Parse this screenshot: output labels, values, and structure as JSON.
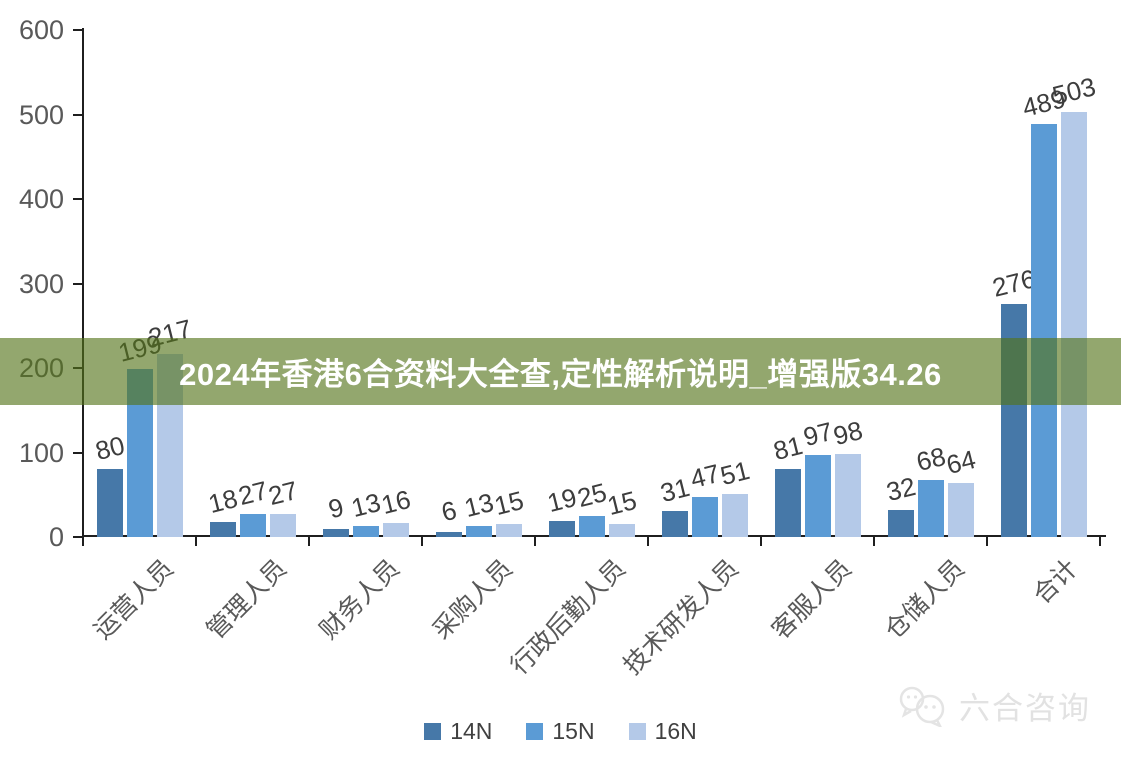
{
  "banner": {
    "text": "2024年香港6合资料大全查,定性解析说明_增强版34.26",
    "bg_rgba": "rgba(84,116,25,0.63)"
  },
  "chart_data": {
    "type": "bar",
    "title": "",
    "xlabel": "",
    "ylabel": "",
    "categories": [
      "运营人员",
      "管理人员",
      "财务人员",
      "采购人员",
      "行政后勤人员",
      "技术研发人员",
      "客服人员",
      "仓储人员",
      "合计"
    ],
    "series": [
      {
        "name": "14N",
        "color": "#4678a8",
        "values": [
          80,
          18,
          9,
          6,
          19,
          31,
          81,
          32,
          276
        ]
      },
      {
        "name": "15N",
        "color": "#5b9bd5",
        "values": [
          199,
          27,
          13,
          13,
          25,
          47,
          97,
          68,
          489
        ]
      },
      {
        "name": "16N",
        "color": "#b4c9e8",
        "values": [
          217,
          27,
          16,
          15,
          15,
          51,
          98,
          64,
          503
        ]
      }
    ],
    "ylim": [
      0,
      600
    ],
    "ytick_step": 100,
    "yticks": [
      0,
      100,
      200,
      300,
      400,
      500,
      600
    ],
    "grid": false,
    "legend_position": "bottom",
    "data_labels": true
  },
  "watermark": {
    "text": "六合咨询",
    "icon": "wechat-bubbles-icon"
  },
  "colors": {
    "axis": "#1f1f1f",
    "tick_label": "#595959",
    "value_label": "#3d3d3d",
    "legend_label": "#404040",
    "watermark": "#e2e2e2"
  }
}
